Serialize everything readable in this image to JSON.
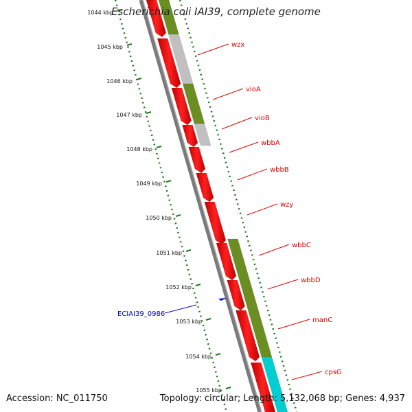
{
  "title": "Escherichia coli IAI39, complete genome",
  "accession": "Accession: NC_011750",
  "summary": "Topology: circular; Length: 5,132,068 bp; Genes: 4,937",
  "colors": {
    "ruler": "#1a7a1a",
    "backbone": "#808080",
    "cds": "#ff0000",
    "olive": "#6b8e23",
    "grey": "#c0c0c0",
    "cyan": "#00ced1",
    "gene_label": "#e00000",
    "locus_label": "#0000c8"
  },
  "ruler_ticks": [
    "1044 kbp",
    "1045 kbp",
    "1046 kbp",
    "1047 kbp",
    "1048 kbp",
    "1049 kbp",
    "1050 kbp",
    "1051 kbp",
    "1052 kbp",
    "1053 kbp",
    "1054 kbp",
    "1055 kbp"
  ],
  "gene_labels": [
    "wzx",
    "vioA",
    "vioB",
    "wbbA",
    "wbbB",
    "wzy",
    "wbbC",
    "wbbD",
    "manC",
    "cpsG"
  ],
  "locus_label": "ECIAI39_0986"
}
